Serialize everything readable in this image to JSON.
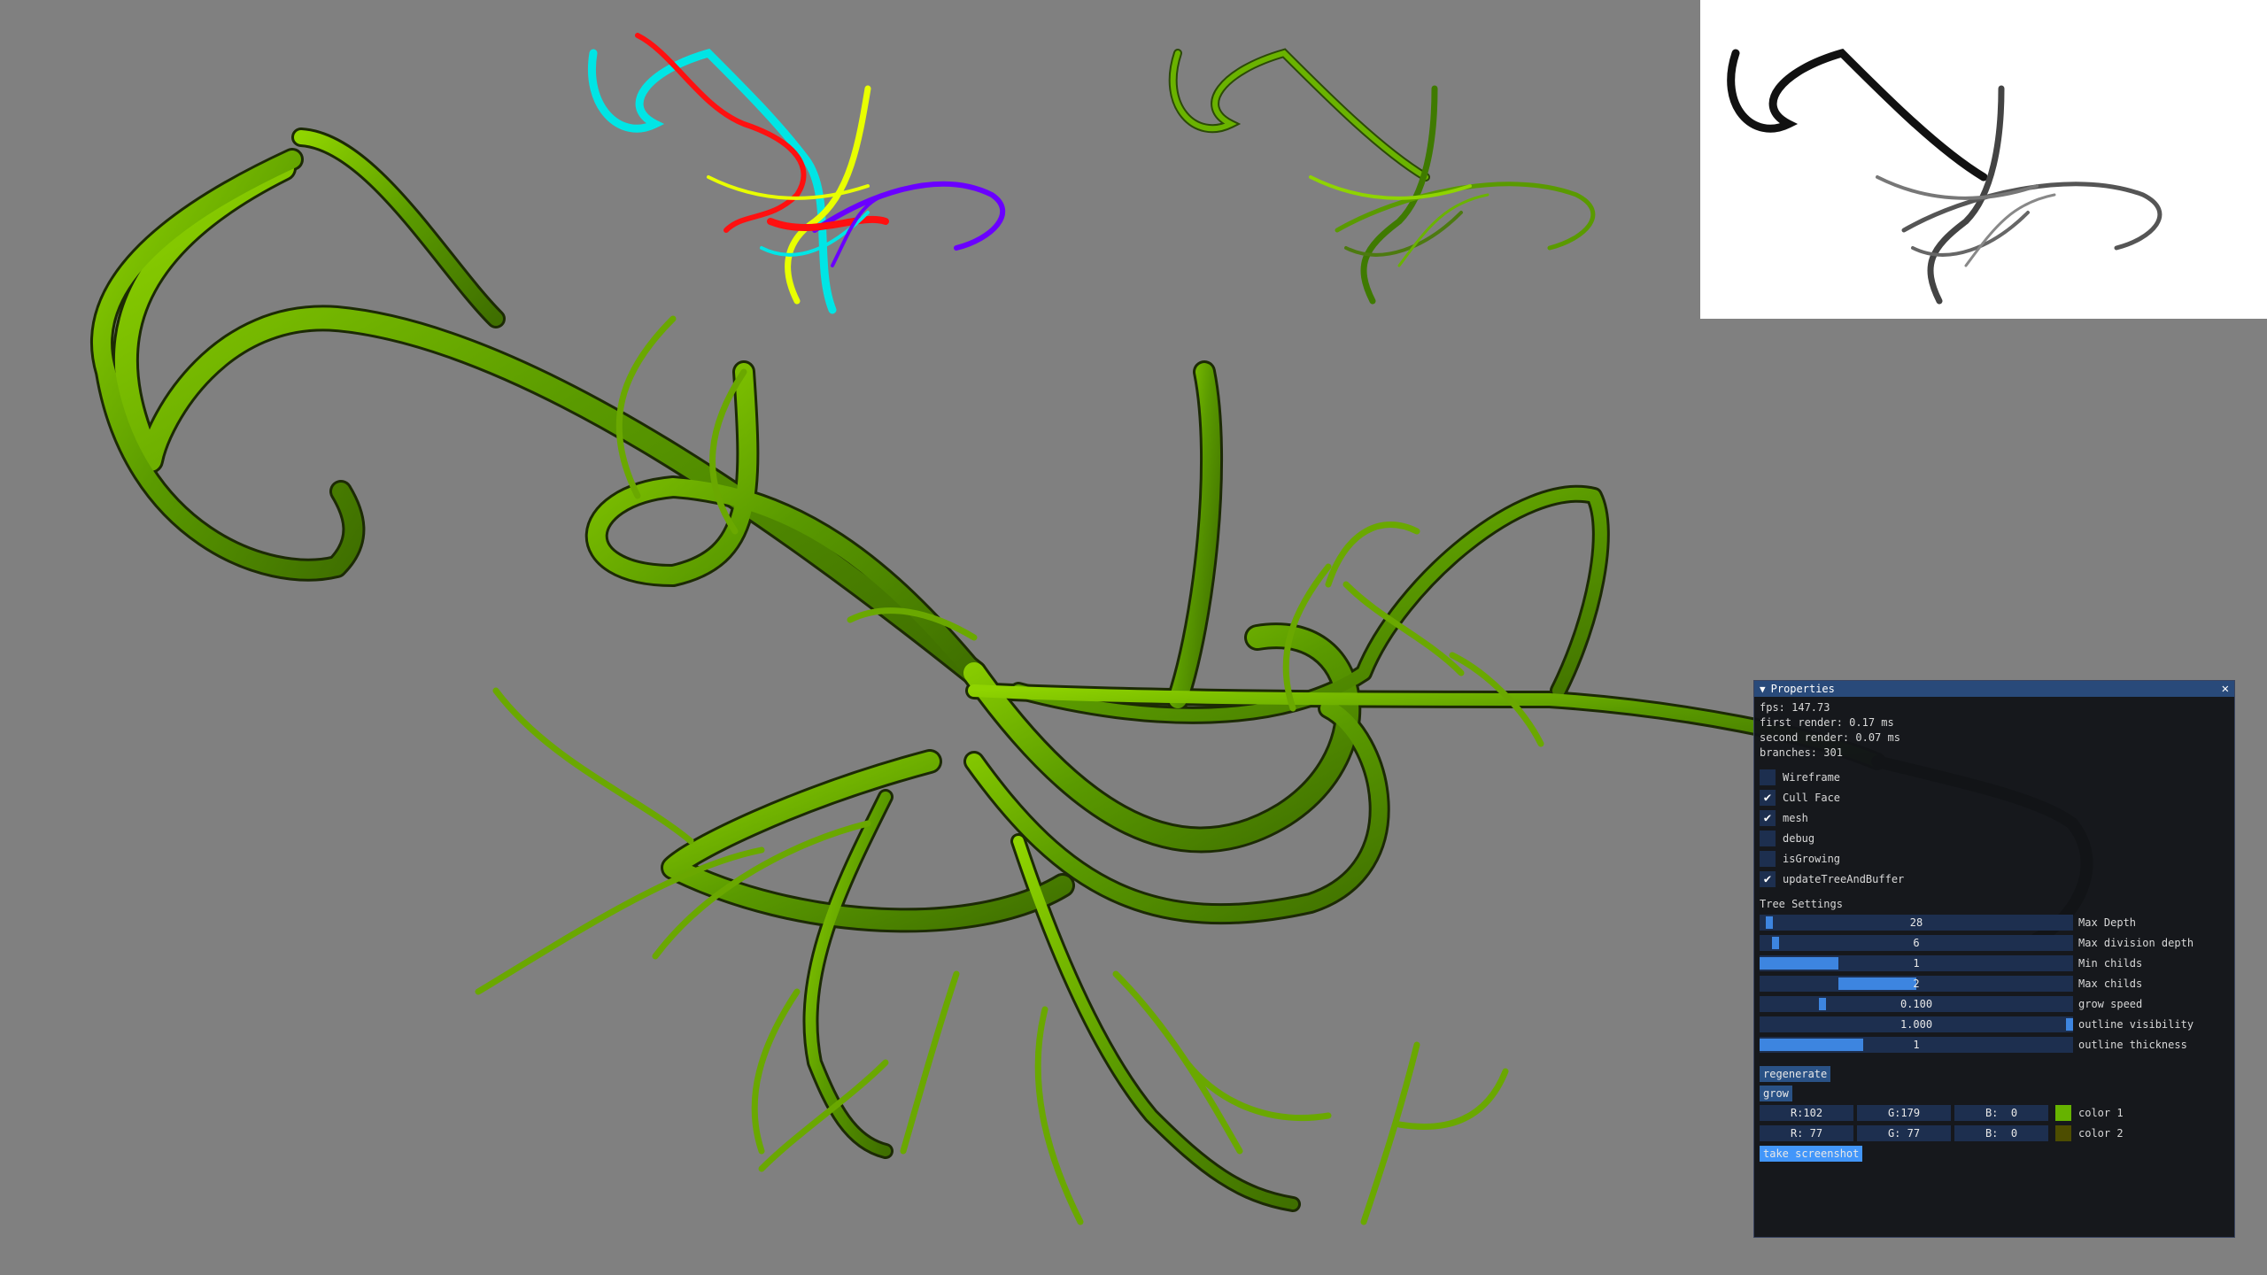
{
  "scene": {
    "background_color": "#808080",
    "color1": "#66b300",
    "color2": "#4d4d00",
    "depth_bg": "#ffffff"
  },
  "panel": {
    "title": "Properties",
    "stats": {
      "fps": "fps: 147.73",
      "first_render": "first render: 0.17 ms",
      "second_render": "second render: 0.07 ms",
      "branches": "branches: 301"
    },
    "checkboxes": [
      {
        "label": "Wireframe",
        "checked": false
      },
      {
        "label": "Cull Face",
        "checked": true
      },
      {
        "label": "mesh",
        "checked": true
      },
      {
        "label": "debug",
        "checked": false
      },
      {
        "label": "isGrowing",
        "checked": false
      },
      {
        "label": "updateTreeAndBuffer",
        "checked": true
      }
    ],
    "section_label": "Tree Settings",
    "sliders": [
      {
        "label": "Max Depth",
        "value": "28",
        "fraction": 0.03
      },
      {
        "label": "Max division depth",
        "value": "6",
        "fraction": 0.05
      },
      {
        "label": "Min childs",
        "value": "1",
        "fraction": 0.25
      },
      {
        "label": "Max childs",
        "value": "2",
        "fraction": 0.5
      },
      {
        "label": "grow speed",
        "value": "0.100",
        "fraction": 0.2
      },
      {
        "label": "outline visibility",
        "value": "1.000",
        "fraction": 1.0
      },
      {
        "label": "outline thickness",
        "value": "1",
        "fraction": 0.33
      }
    ],
    "buttons": {
      "regenerate": "regenerate",
      "grow": "grow",
      "screenshot": "take screenshot"
    },
    "colors": [
      {
        "r": "R:102",
        "g": "G:179",
        "b": "B:  0",
        "label": "color 1",
        "swatch": "#66b300"
      },
      {
        "r": "R: 77",
        "g": "G: 77",
        "b": "B:  0",
        "label": "color 2",
        "swatch": "#4d4d00"
      }
    ],
    "close_icon": "close-icon",
    "collapse_icon": "triangle-down-icon"
  }
}
